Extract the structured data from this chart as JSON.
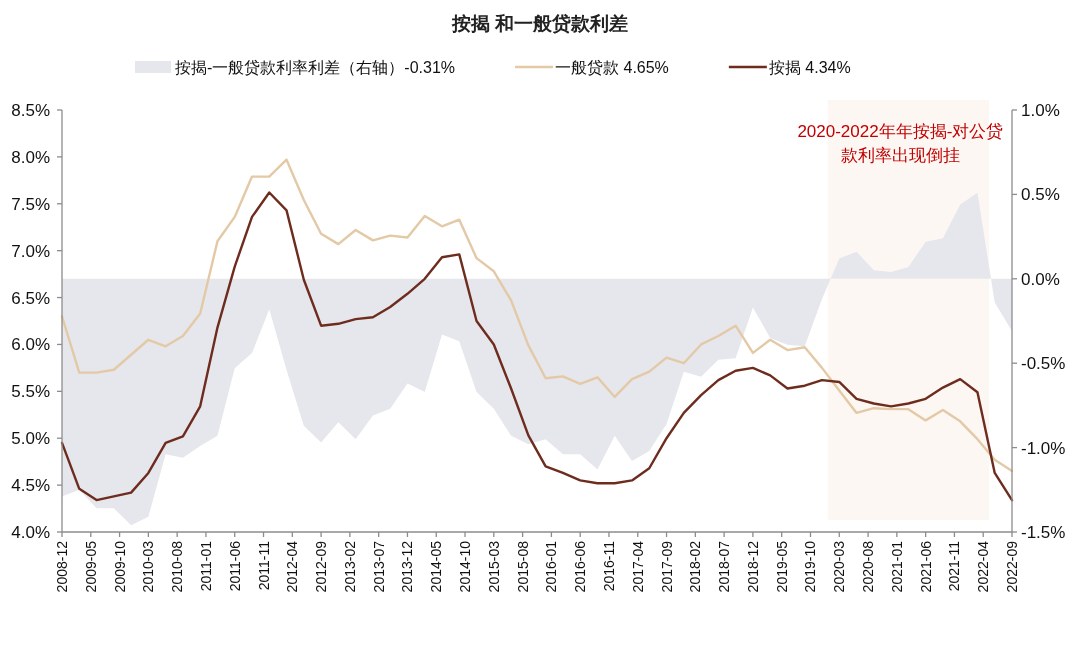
{
  "chart_data": {
    "type": "line",
    "title": "按揭 和一般贷款利差",
    "legend": "top",
    "x": [
      "2008-12",
      "2009-03",
      "2009-06",
      "2009-09",
      "2009-12",
      "2010-03",
      "2010-06",
      "2010-09",
      "2010-12",
      "2011-03",
      "2011-06",
      "2011-09",
      "2011-12",
      "2012-03",
      "2012-06",
      "2012-09",
      "2012-12",
      "2013-03",
      "2013-06",
      "2013-09",
      "2013-12",
      "2014-03",
      "2014-06",
      "2014-09",
      "2014-12",
      "2015-03",
      "2015-06",
      "2015-09",
      "2015-12",
      "2016-03",
      "2016-06",
      "2016-09",
      "2016-12",
      "2017-03",
      "2017-06",
      "2017-09",
      "2017-12",
      "2018-03",
      "2018-06",
      "2018-09",
      "2018-12",
      "2019-03",
      "2019-06",
      "2019-09",
      "2019-12",
      "2020-03",
      "2020-06",
      "2020-09",
      "2020-12",
      "2021-03",
      "2021-06",
      "2021-09",
      "2021-12",
      "2022-03",
      "2022-06",
      "2022-09"
    ],
    "series": [
      {
        "name": "按揭-一般贷款利率利差（右轴）-0.31%",
        "type": "area",
        "axis": "y2",
        "color": "#e6e7ec",
        "values": [
          -1.29,
          -1.25,
          -1.36,
          -1.36,
          -1.46,
          -1.41,
          -1.04,
          -1.06,
          -0.99,
          -0.93,
          -0.53,
          -0.44,
          -0.18,
          -0.54,
          -0.87,
          -0.97,
          -0.85,
          -0.95,
          -0.81,
          -0.77,
          -0.62,
          -0.67,
          -0.33,
          -0.37,
          -0.67,
          -0.77,
          -0.93,
          -0.98,
          -0.95,
          -1.04,
          -1.04,
          -1.13,
          -0.93,
          -1.08,
          -1.02,
          -0.86,
          -0.55,
          -0.58,
          -0.48,
          -0.47,
          -0.17,
          -0.35,
          -0.39,
          -0.4,
          -0.12,
          0.12,
          0.16,
          0.05,
          0.04,
          0.07,
          0.22,
          0.24,
          0.44,
          0.51,
          -0.14,
          -0.31
        ]
      },
      {
        "name": "一般贷款 4.65%",
        "type": "line",
        "color": "#e3c9a6",
        "values": [
          6.3,
          5.7,
          5.7,
          5.73,
          5.89,
          6.05,
          5.98,
          6.09,
          6.33,
          7.1,
          7.36,
          7.79,
          7.79,
          7.97,
          7.54,
          7.18,
          7.07,
          7.22,
          7.11,
          7.16,
          7.14,
          7.37,
          7.26,
          7.33,
          6.92,
          6.78,
          6.47,
          5.99,
          5.64,
          5.66,
          5.58,
          5.65,
          5.44,
          5.63,
          5.71,
          5.86,
          5.8,
          6.0,
          6.09,
          6.2,
          5.91,
          6.05,
          5.94,
          5.97,
          5.75,
          5.51,
          5.27,
          5.32,
          5.31,
          5.31,
          5.19,
          5.3,
          5.18,
          4.99,
          4.77,
          4.65
        ]
      },
      {
        "name": "按揭  4.34%",
        "type": "line",
        "color": "#6e2c1e",
        "values": [
          4.95,
          4.46,
          4.34,
          4.38,
          4.42,
          4.63,
          4.95,
          5.02,
          5.34,
          6.18,
          6.83,
          7.36,
          7.62,
          7.43,
          6.69,
          6.2,
          6.22,
          6.27,
          6.29,
          6.4,
          6.54,
          6.7,
          6.93,
          6.96,
          6.25,
          6.0,
          5.53,
          5.03,
          4.7,
          4.63,
          4.55,
          4.52,
          4.52,
          4.55,
          4.68,
          5.0,
          5.27,
          5.46,
          5.62,
          5.72,
          5.75,
          5.67,
          5.53,
          5.56,
          5.62,
          5.6,
          5.42,
          5.37,
          5.34,
          5.37,
          5.42,
          5.54,
          5.63,
          5.49,
          4.63,
          4.34
        ]
      }
    ],
    "xlim": [
      "2008-12",
      "2022-09"
    ],
    "xticks": [
      "2008-12",
      "2009-05",
      "2009-10",
      "2010-03",
      "2010-08",
      "2011-01",
      "2011-06",
      "2011-11",
      "2012-04",
      "2012-09",
      "2013-02",
      "2013-07",
      "2013-12",
      "2014-05",
      "2014-10",
      "2015-03",
      "2015-08",
      "2016-01",
      "2016-06",
      "2016-11",
      "2017-04",
      "2017-09",
      "2018-02",
      "2018-07",
      "2018-12",
      "2019-05",
      "2019-10",
      "2020-03",
      "2020-08",
      "2021-01",
      "2021-06",
      "2021-11",
      "2022-04",
      "2022-09"
    ],
    "ylim": [
      4.0,
      8.5
    ],
    "yticks": [
      {
        "value": 4.0,
        "label": "4.0%"
      },
      {
        "value": 4.5,
        "label": "4.5%"
      },
      {
        "value": 5.0,
        "label": "5.0%"
      },
      {
        "value": 5.5,
        "label": "5.5%"
      },
      {
        "value": 6.0,
        "label": "6.0%"
      },
      {
        "value": 6.5,
        "label": "6.5%"
      },
      {
        "value": 7.0,
        "label": "7.0%"
      },
      {
        "value": 7.5,
        "label": "7.5%"
      },
      {
        "value": 8.0,
        "label": "8.0%"
      },
      {
        "value": 8.5,
        "label": "8.5%"
      }
    ],
    "y2lim": [
      -1.5,
      1.0
    ],
    "y2ticks": [
      {
        "value": -1.5,
        "label": "-1.5%"
      },
      {
        "value": -1.0,
        "label": "-1.0%"
      },
      {
        "value": -0.5,
        "label": "-0.5%"
      },
      {
        "value": 0.0,
        "label": "0.0%"
      },
      {
        "value": 0.5,
        "label": "0.5%"
      },
      {
        "value": 1.0,
        "label": "1.0%"
      }
    ],
    "bands": [
      {
        "axis": "x",
        "from": "2020-01",
        "to": "2022-05",
        "color": "#fcf7f3",
        "label": "2020-2022年年按揭-对公贷款利率出现倒挂"
      }
    ]
  }
}
